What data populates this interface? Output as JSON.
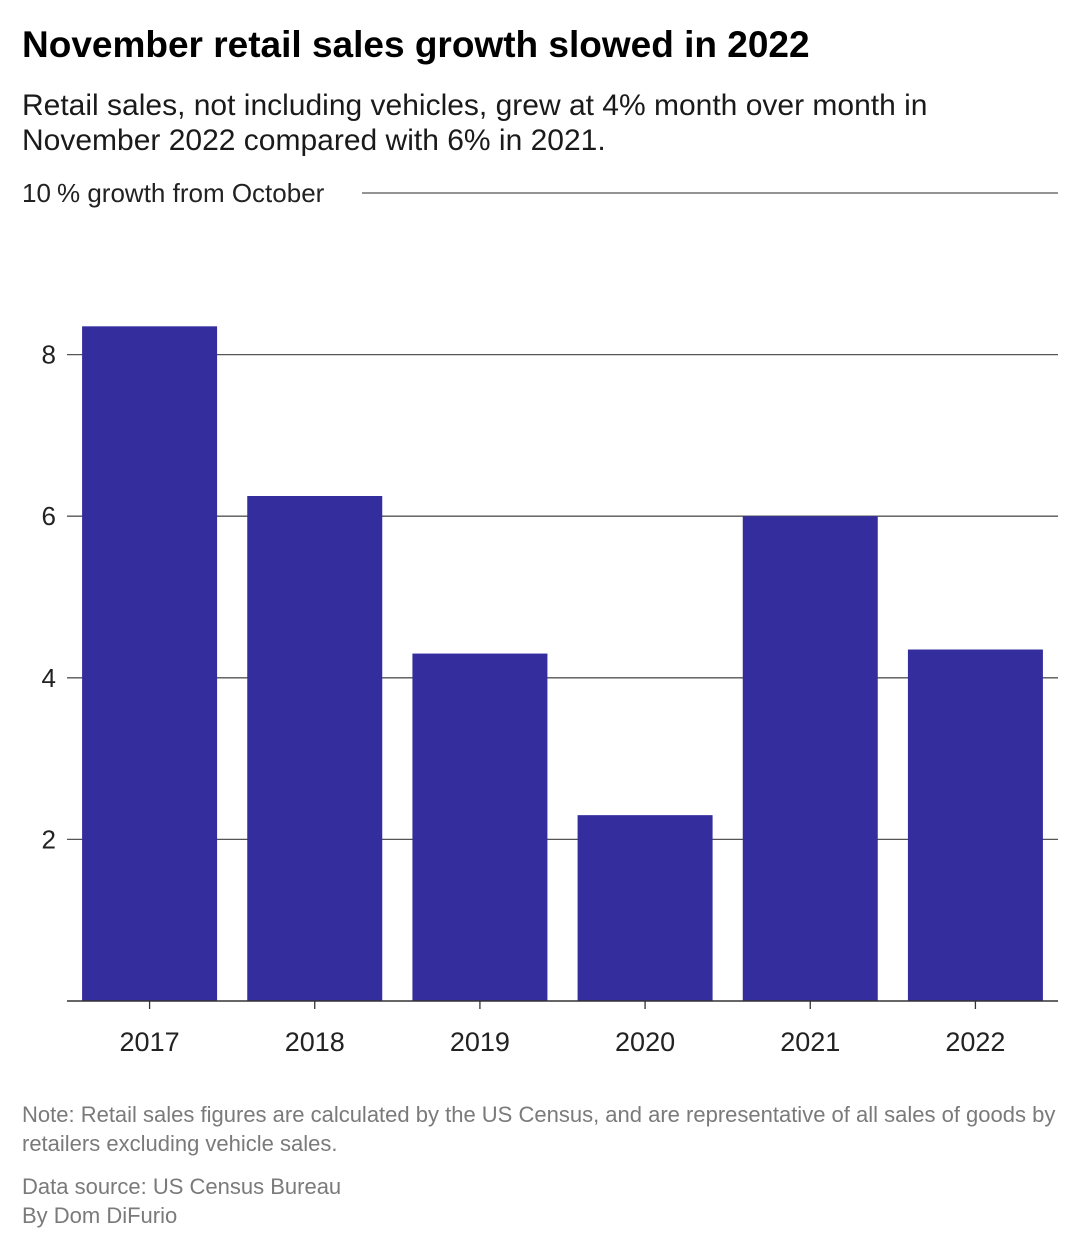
{
  "title": "November retail sales growth slowed in 2022",
  "subtitle": "Retail sales, not including vehicles, grew at 4% month over month in November 2022 compared with 6% in 2021.",
  "note": "Note: Retail sales figures are calculated by the US Census, and are representative of all sales of goods by retailers excluding vehicle sales.",
  "source": "Data source: US Census Bureau",
  "byline": "By Dom DiFurio",
  "colors": {
    "bar": "#332d9e",
    "grid": "#555555",
    "axis": "#333333"
  },
  "chart_data": {
    "type": "bar",
    "categories": [
      "2017",
      "2018",
      "2019",
      "2020",
      "2021",
      "2022"
    ],
    "values": [
      8.35,
      6.25,
      4.3,
      2.3,
      6.0,
      4.35
    ],
    "ylabel": "% growth from October",
    "ylim": [
      0,
      10
    ],
    "yticks": [
      2,
      4,
      6,
      8,
      10
    ],
    "ytick_labels": [
      "2",
      "4",
      "6",
      "8",
      "10"
    ],
    "grid": true,
    "legend": "none"
  }
}
